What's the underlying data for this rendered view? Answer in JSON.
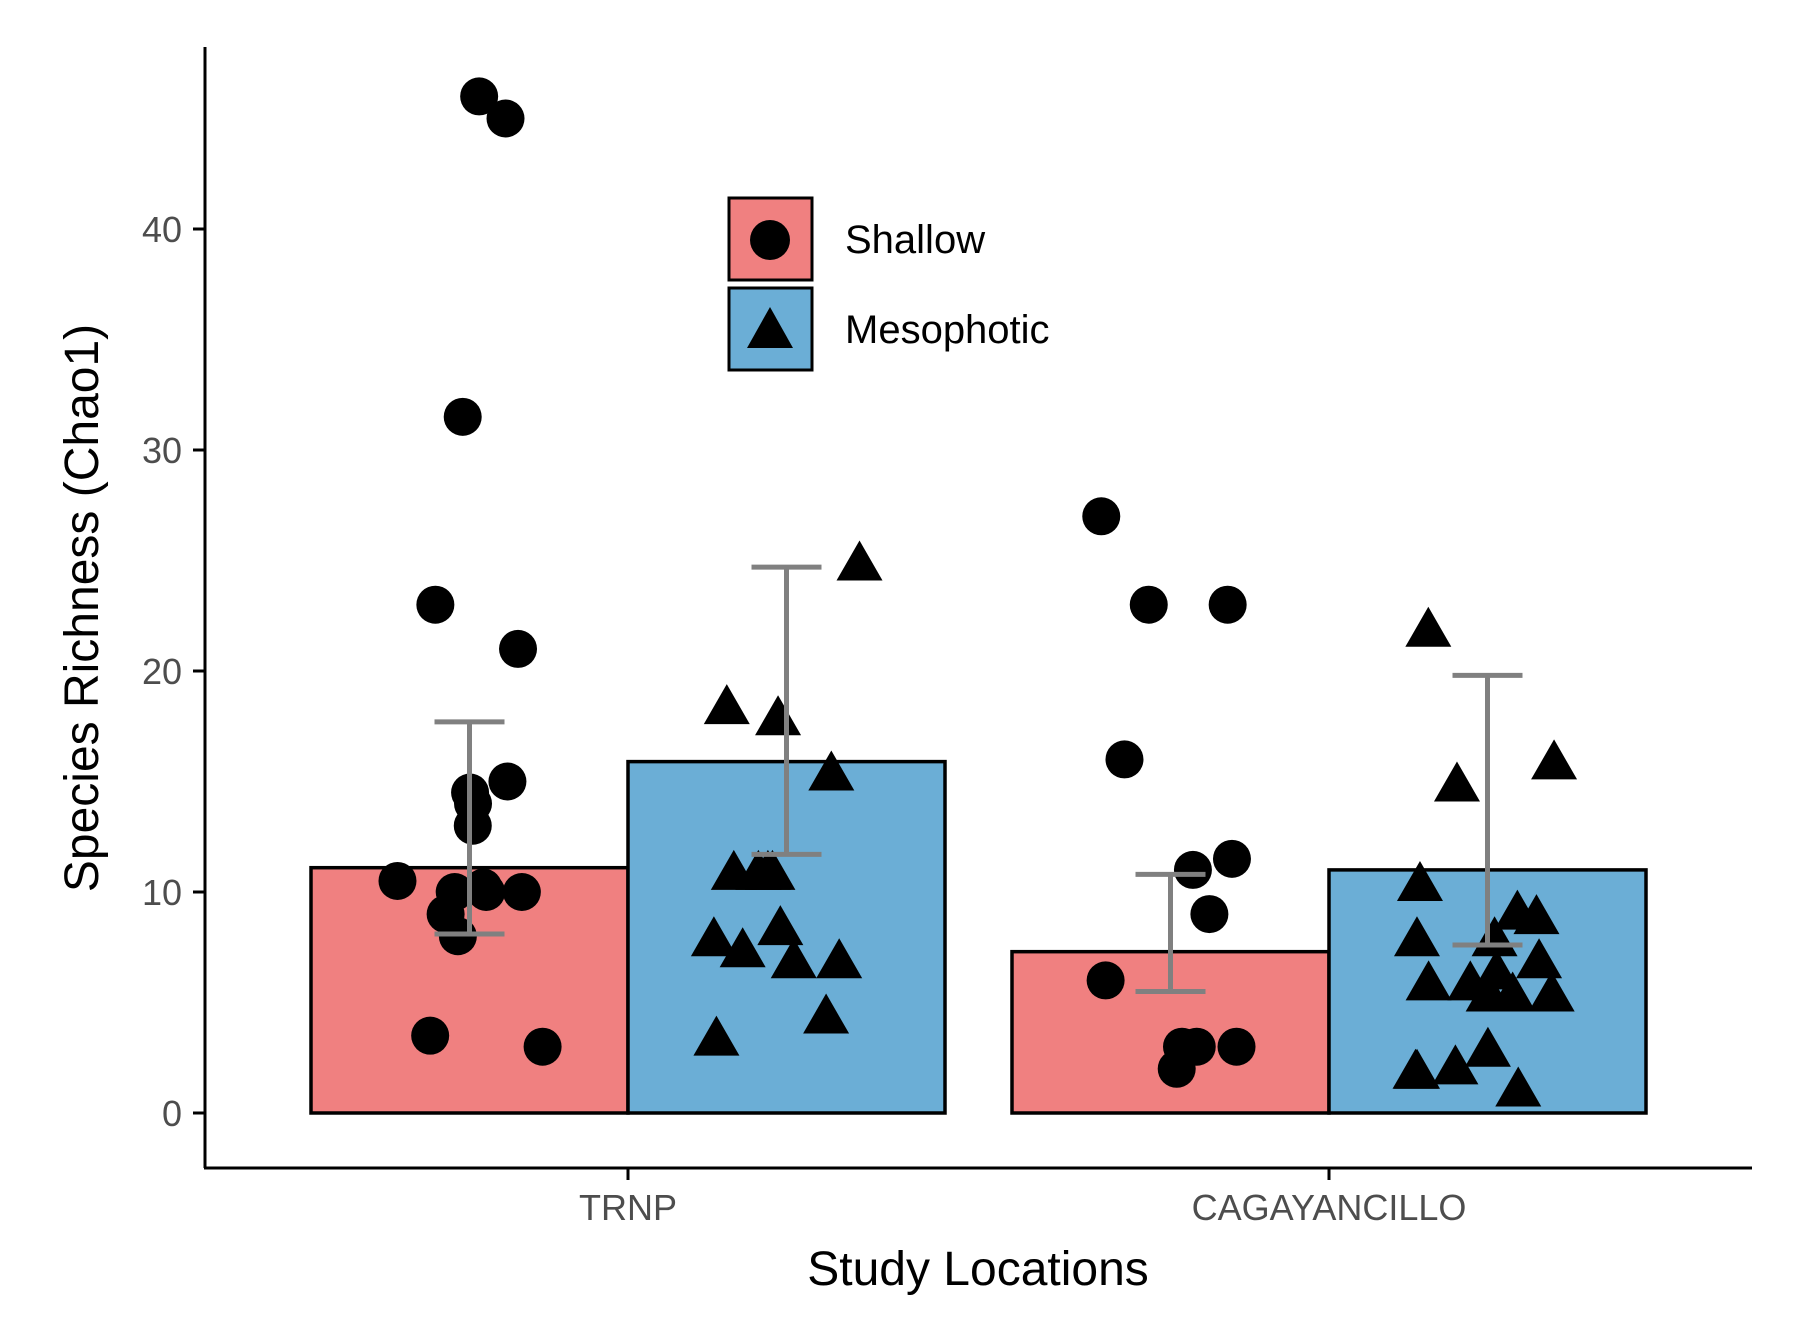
{
  "chart_data": {
    "type": "bar",
    "title": "",
    "xlabel": "Study Locations",
    "ylabel": "Species Richness (Chao1)",
    "ylim": [
      0,
      47
    ],
    "yticks": [
      0,
      10,
      20,
      30,
      40
    ],
    "grid": false,
    "categories": [
      "TRNP",
      "CAGAYANCILLO"
    ],
    "legend": {
      "placement": "top-center",
      "entries": [
        "Shallow",
        "Mesophotic"
      ]
    },
    "colors": {
      "Shallow": "#F08080",
      "Mesophotic": "#6BAED6",
      "errorbar": "#808080",
      "points": "#000000"
    },
    "series": [
      {
        "name": "Shallow",
        "marker": "circle",
        "values": [
          11.1,
          7.3
        ],
        "error_low": [
          8.1,
          5.5
        ],
        "error_high": [
          17.7,
          10.8
        ],
        "points": [
          [
            45,
            46,
            31.5,
            23,
            21,
            15,
            14.5,
            14,
            13,
            10.5,
            10.2,
            10,
            10,
            10,
            9,
            8,
            3.5,
            3
          ],
          [
            27,
            23,
            23,
            16,
            11.5,
            11,
            9,
            6,
            3,
            3,
            3,
            2
          ]
        ]
      },
      {
        "name": "Mesophotic",
        "marker": "triangle",
        "values": [
          15.9,
          11.0
        ],
        "error_low": [
          11.7,
          7.6
        ],
        "error_high": [
          24.7,
          19.8
        ],
        "points": [
          [
            25,
            18.5,
            18,
            15.5,
            11,
            11,
            11,
            11,
            8.5,
            8,
            7.5,
            7,
            7,
            4.5,
            3.5
          ],
          [
            22,
            16,
            15,
            10.5,
            9.2,
            9,
            8,
            8,
            7,
            6.5,
            6,
            6,
            5.5,
            5.5,
            5.5,
            3,
            2.2,
            2,
            2,
            1.2
          ]
        ]
      }
    ]
  }
}
